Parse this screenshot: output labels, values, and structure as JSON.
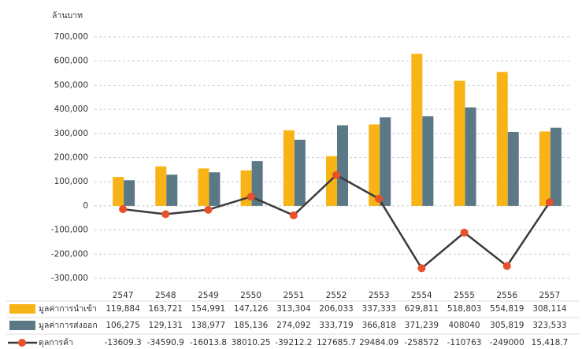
{
  "chart_data": {
    "type": "bar",
    "y_unit_label": "ล้านบาท",
    "categories": [
      "2547",
      "2548",
      "2549",
      "2550",
      "2551",
      "2552",
      "2553",
      "2554",
      "2555",
      "2556",
      "2557"
    ],
    "series": [
      {
        "name": "มูลค่าการนำเข้า",
        "type": "bar",
        "color": "#f8b417",
        "values": [
          119884,
          163721,
          154991,
          147126,
          313304,
          206033,
          337333,
          629811,
          518803,
          554819,
          308114
        ],
        "value_labels": [
          "119,884",
          "163,721",
          "154,991",
          "147,126",
          "313,304",
          "206,033",
          "337,333",
          "629,811",
          "518,803",
          "554,819",
          "308,114"
        ]
      },
      {
        "name": "มูลค่าการส่งออก",
        "type": "bar",
        "color": "#5b7886",
        "values": [
          106275,
          129131,
          138977,
          185136,
          274092,
          333719,
          366818,
          371239,
          408040,
          305819,
          323533
        ],
        "value_labels": [
          "106,275",
          "129,131",
          "138,977",
          "185,136",
          "274,092",
          "333,719",
          "366,818",
          "371,239",
          "408040",
          "305,819",
          "323,533"
        ]
      },
      {
        "name": "ดุลการค้า",
        "type": "line",
        "color": "#3a3a3a",
        "marker_color": "#e8502a",
        "values": [
          -13609.3,
          -34590.9,
          -16013.8,
          38010.25,
          -39212.2,
          127685.7,
          29484.09,
          -258572,
          -110763,
          -249000,
          15418.7
        ],
        "value_labels": [
          "-13609.3",
          "-34590.9",
          "-16013.8",
          "38010.25",
          "-39212.2",
          "127685.7",
          "29484.09",
          "-258572",
          "-110763",
          "-249000",
          "15,418.7"
        ]
      }
    ],
    "ylim": [
      -300000,
      700000
    ],
    "yticks": [
      {
        "value": -300000,
        "label": "-300,000"
      },
      {
        "value": -200000,
        "label": "-200,000"
      },
      {
        "value": -100000,
        "label": "-100,000"
      },
      0,
      {
        "value": 100000,
        "label": "100,000"
      },
      {
        "value": 200000,
        "label": "200,000"
      },
      {
        "value": 300000,
        "label": "300,000"
      },
      {
        "value": 400000,
        "label": "400,000"
      },
      {
        "value": 500000,
        "label": "500,000"
      },
      {
        "value": 600000,
        "label": "600,000"
      },
      {
        "value": 700000,
        "label": "700,000"
      }
    ],
    "grid": true
  }
}
